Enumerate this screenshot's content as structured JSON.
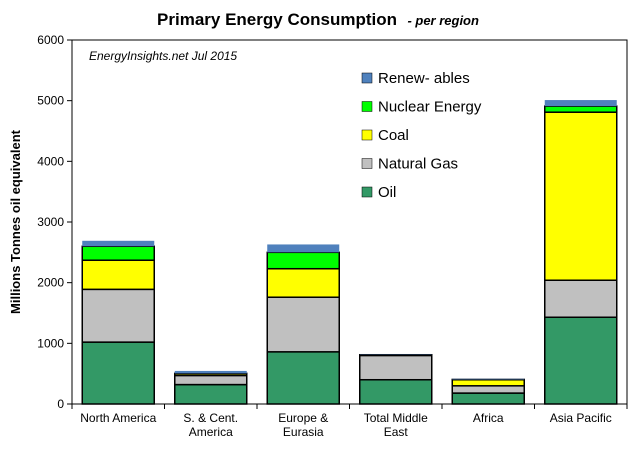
{
  "chart_data": {
    "type": "bar",
    "stacked": true,
    "title": "Primary Energy Consumption",
    "subtitle": "- per region",
    "annotation": "EnergyInsights.net  Jul 2015",
    "ylabel": "Millions Tonnes oil equivalent",
    "xlabel": "",
    "ylim": [
      0,
      6000
    ],
    "yticks": [
      "0",
      "1000",
      "2000",
      "3000",
      "4000",
      "5000",
      "6000"
    ],
    "grid": false,
    "legend_position": "top-right",
    "categories": [
      [
        "North America"
      ],
      [
        "S. & Cent.",
        "America"
      ],
      [
        "Europe &",
        "Eurasia"
      ],
      [
        "Total Middle",
        "East"
      ],
      [
        "Africa"
      ],
      [
        "Asia Pacific"
      ]
    ],
    "series": [
      {
        "name": "Oil",
        "color": "#339966",
        "values": [
          1020,
          320,
          860,
          400,
          180,
          1430
        ]
      },
      {
        "name": "Natural Gas",
        "color": "#c0c0c0",
        "values": [
          870,
          150,
          900,
          400,
          120,
          610
        ]
      },
      {
        "name": "Coal",
        "color": "#ffff00",
        "values": [
          480,
          30,
          470,
          10,
          100,
          2770
        ]
      },
      {
        "name": "Nuclear Energy",
        "color": "#00ff00",
        "values": [
          230,
          5,
          270,
          2,
          5,
          100
        ]
      },
      {
        "name": "Renew- ables",
        "color": "#4f81bd",
        "values": [
          90,
          40,
          130,
          5,
          10,
          100
        ]
      }
    ],
    "legend_order": [
      "Renew- ables",
      "Nuclear Energy",
      "Coal",
      "Natural Gas",
      "Oil"
    ]
  }
}
